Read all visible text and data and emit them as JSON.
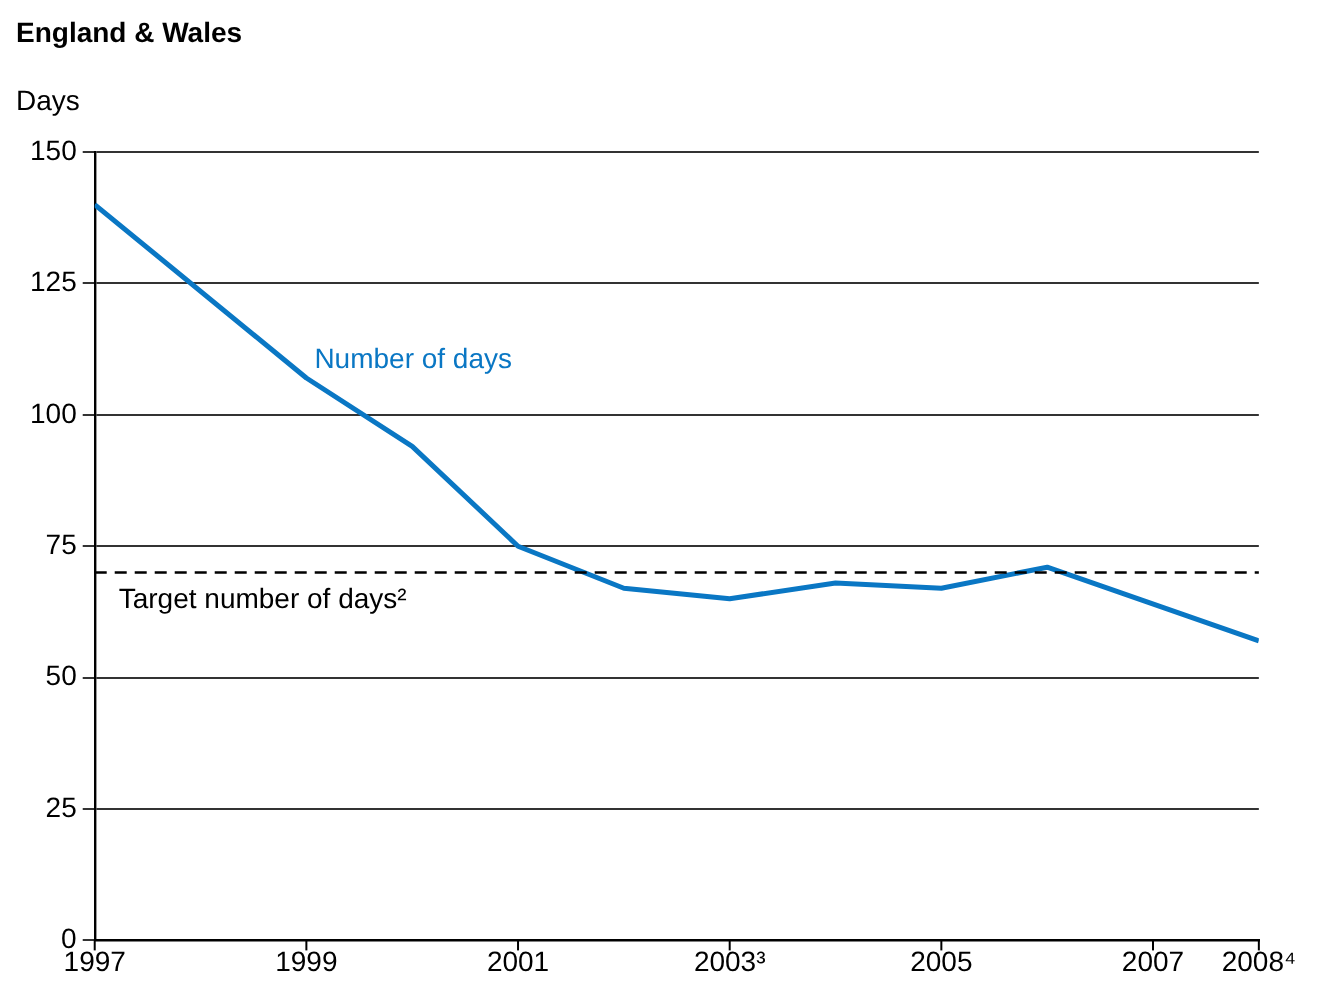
{
  "chart_data": {
    "type": "line",
    "title": "England & Wales",
    "ylabel": "Days",
    "x": [
      1997,
      1999,
      2000,
      2001,
      2002,
      2003,
      2004,
      2005,
      2006,
      2008
    ],
    "series": [
      {
        "name": "Number of days",
        "color": "#0a77c4",
        "values": [
          140,
          107,
          94,
          75,
          67,
          65,
          68,
          67,
          71,
          57
        ]
      }
    ],
    "xlim": [
      1997,
      2008
    ],
    "xticks": [
      1997,
      1999,
      2001,
      {
        "value": 2003,
        "label": "2003³"
      },
      2005,
      2007,
      {
        "value": 2008,
        "label": "2008⁴"
      }
    ],
    "ylim": [
      0,
      150
    ],
    "yticks": [
      0,
      25,
      50,
      75,
      100,
      125,
      150
    ],
    "ref_lines": [
      {
        "axis": "y",
        "value": 70,
        "label": "Target number of days²",
        "color": "#000000",
        "line_style": "dashed"
      }
    ],
    "grid": "y",
    "legend": false,
    "marker": "none",
    "line_style": "solid"
  }
}
